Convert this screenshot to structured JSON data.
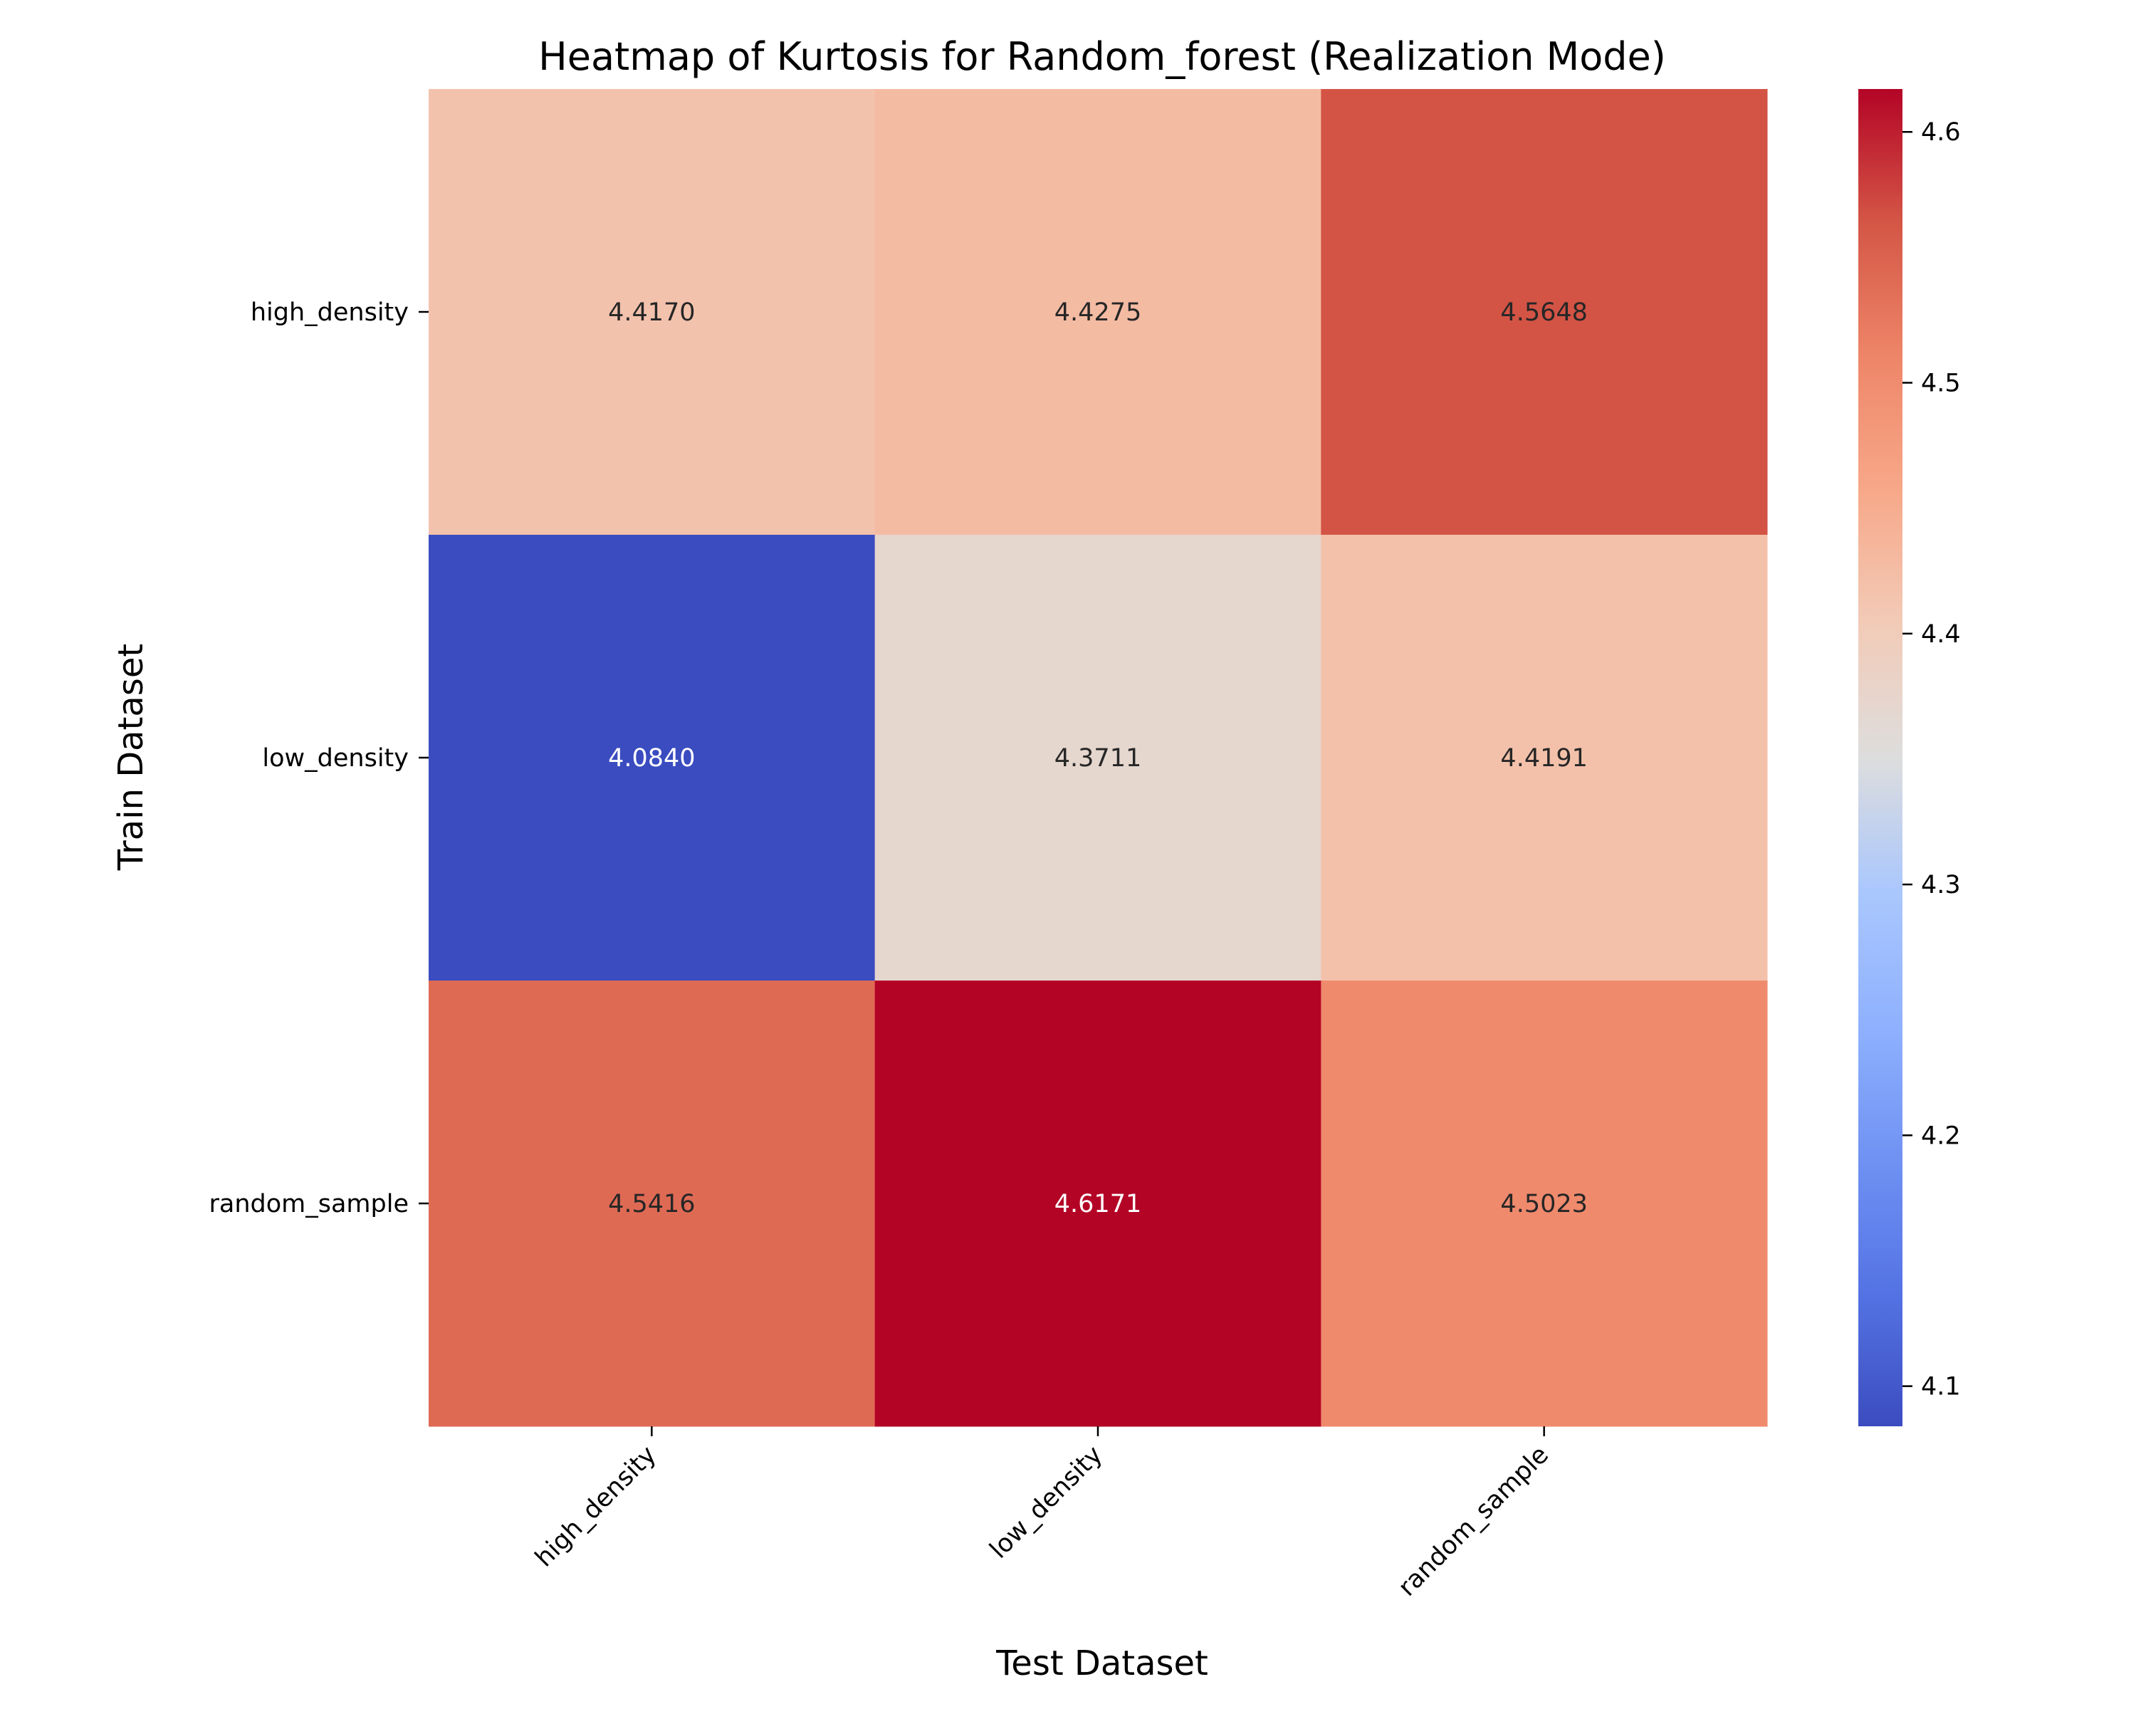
{
  "chart_data": {
    "type": "heatmap",
    "title": "Heatmap of Kurtosis for Random_forest (Realization Mode)",
    "xlabel": "Test Dataset",
    "ylabel": "Train Dataset",
    "x_categories": [
      "high_density",
      "low_density",
      "random_sample"
    ],
    "y_categories": [
      "high_density",
      "low_density",
      "random_sample"
    ],
    "values": [
      [
        4.417,
        4.4275,
        4.5648
      ],
      [
        4.084,
        4.3711,
        4.4191
      ],
      [
        4.5416,
        4.6171,
        4.5023
      ]
    ],
    "value_labels": [
      [
        "4.4170",
        "4.4275",
        "4.5648"
      ],
      [
        "4.0840",
        "4.3711",
        "4.4191"
      ],
      [
        "4.5416",
        "4.6171",
        "4.5023"
      ]
    ],
    "colormap": "coolwarm",
    "vmin": 4.084,
    "vmax": 4.6171,
    "colorbar_ticks": [
      "4.1",
      "4.2",
      "4.3",
      "4.4",
      "4.5",
      "4.6"
    ]
  }
}
